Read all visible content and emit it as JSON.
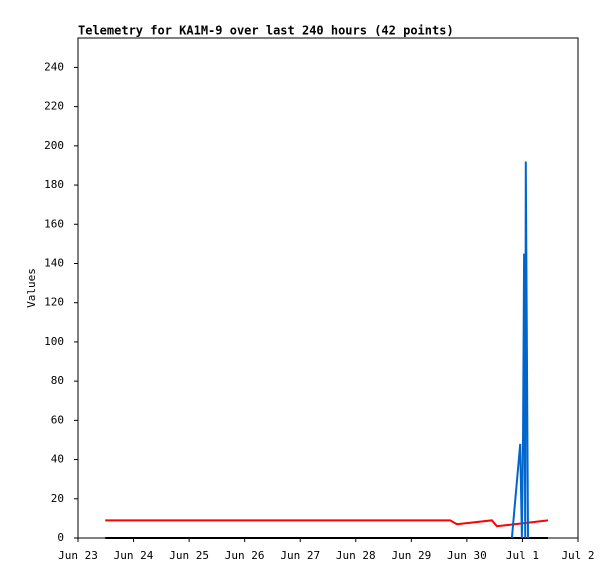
{
  "chart_data": {
    "type": "line",
    "title": "Telemetry for KA1M-9 over last 240 hours (42 points)",
    "y_label": "Values",
    "xlim": [
      0,
      9
    ],
    "xticks": [
      {
        "value": 0,
        "label": "Jun 23"
      },
      {
        "value": 1,
        "label": "Jun 24"
      },
      {
        "value": 2,
        "label": "Jun 25"
      },
      {
        "value": 3,
        "label": "Jun 26"
      },
      {
        "value": 4,
        "label": "Jun 27"
      },
      {
        "value": 5,
        "label": "Jun 28"
      },
      {
        "value": 6,
        "label": "Jun 29"
      },
      {
        "value": 7,
        "label": "Jun 30"
      },
      {
        "value": 8,
        "label": "Jul 1"
      },
      {
        "value": 9,
        "label": "Jul 2"
      }
    ],
    "ylim": [
      0,
      255
    ],
    "yticks": [
      0,
      20,
      40,
      60,
      80,
      100,
      120,
      140,
      160,
      180,
      200,
      220,
      240
    ],
    "series": [
      {
        "color": "#000000",
        "x": [
          0.49,
          8.46
        ],
        "values": [
          0,
          0
        ]
      },
      {
        "color": "#ff0000",
        "x": [
          0.49,
          6.7,
          6.82,
          7.45,
          7.54,
          8.46
        ],
        "values": [
          9,
          9,
          7,
          9,
          6,
          9
        ]
      },
      {
        "color": "#0066cc",
        "x": [
          7.81,
          7.96,
          7.99,
          8.01,
          8.03,
          8.05,
          8.06,
          8.08,
          8.1
        ],
        "values": [
          0,
          48,
          0,
          48,
          145,
          0,
          192,
          97,
          0
        ]
      }
    ]
  }
}
